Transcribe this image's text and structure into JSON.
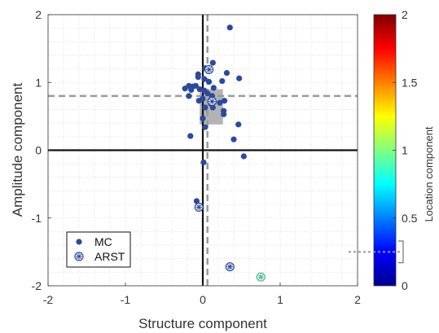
{
  "chart_data": {
    "type": "scatter",
    "xlabel": "Structure component",
    "ylabel": "Amplitude component",
    "xlim": [
      -2,
      2
    ],
    "ylim": [
      -2,
      2
    ],
    "x_ticks": [
      "-2",
      "-1",
      "0",
      "1",
      "2"
    ],
    "y_ticks": [
      "2",
      "1",
      "0",
      "-1",
      "-2"
    ],
    "grid": "dotted",
    "legend_placement": "lower-left",
    "reference_lines": {
      "solid_x": 0,
      "solid_y": 0,
      "dashed_x": 0.06,
      "dashed_y": 0.8
    },
    "shaded_box": {
      "x_range": [
        -0.04,
        0.26
      ],
      "y_range": [
        0.38,
        0.9
      ]
    },
    "colorbar": {
      "label": "Location component",
      "range": [
        0,
        2
      ],
      "ticks": [
        "2",
        "1.5",
        "1",
        "0.5",
        "0"
      ],
      "dashed_level": 0.25,
      "bracket_range": [
        0.17,
        0.33
      ]
    },
    "series": [
      {
        "name": "MC",
        "marker": "filled-circle",
        "color": "#2b4a9e",
        "points": [
          [
            0.35,
            1.81
          ],
          [
            0.13,
            1.29
          ],
          [
            0.03,
            1.21
          ],
          [
            -0.06,
            1.12
          ],
          [
            -0.06,
            1.08
          ],
          [
            0.31,
            1.14
          ],
          [
            0.47,
            1.06
          ],
          [
            0.02,
            1.05
          ],
          [
            0.08,
            1.01
          ],
          [
            0.25,
            1.02
          ],
          [
            -0.18,
            0.95
          ],
          [
            -0.13,
            0.94
          ],
          [
            -0.09,
            0.95
          ],
          [
            -0.23,
            0.91
          ],
          [
            -0.15,
            0.89
          ],
          [
            -0.04,
            0.9
          ],
          [
            0.02,
            0.88
          ],
          [
            0.14,
            0.92
          ],
          [
            0.06,
            0.84
          ],
          [
            0.12,
            0.8
          ],
          [
            -0.18,
            0.8
          ],
          [
            0.0,
            0.76
          ],
          [
            0.1,
            0.74
          ],
          [
            -0.05,
            0.73
          ],
          [
            0.28,
            0.73
          ],
          [
            0.11,
            0.68
          ],
          [
            0.22,
            0.7
          ],
          [
            0.03,
            0.63
          ],
          [
            0.13,
            0.63
          ],
          [
            0.27,
            0.58
          ],
          [
            0.27,
            0.53
          ],
          [
            0.0,
            0.47
          ],
          [
            0.46,
            0.38
          ],
          [
            0.03,
            0.34
          ],
          [
            0.4,
            0.16
          ],
          [
            -0.16,
            0.21
          ],
          [
            0.53,
            -0.09
          ],
          [
            0.01,
            -0.18
          ],
          [
            -0.08,
            -0.75
          ]
        ]
      },
      {
        "name": "ARST",
        "marker": "circle-asterisk",
        "color": "#2b4a9e",
        "points": [
          [
            0.08,
            1.19
          ],
          [
            0.12,
            0.72
          ],
          [
            -0.05,
            -0.84
          ],
          [
            0.35,
            -1.72
          ]
        ]
      },
      {
        "name": "",
        "marker": "circle-asterisk",
        "color": "#4cb98a",
        "in_legend": false,
        "points": [
          [
            0.75,
            -1.87
          ]
        ]
      }
    ]
  },
  "legend": {
    "items": [
      {
        "label": "MC",
        "marker": "filled-circle"
      },
      {
        "label": "ARST",
        "marker": "circle-asterisk"
      }
    ]
  }
}
